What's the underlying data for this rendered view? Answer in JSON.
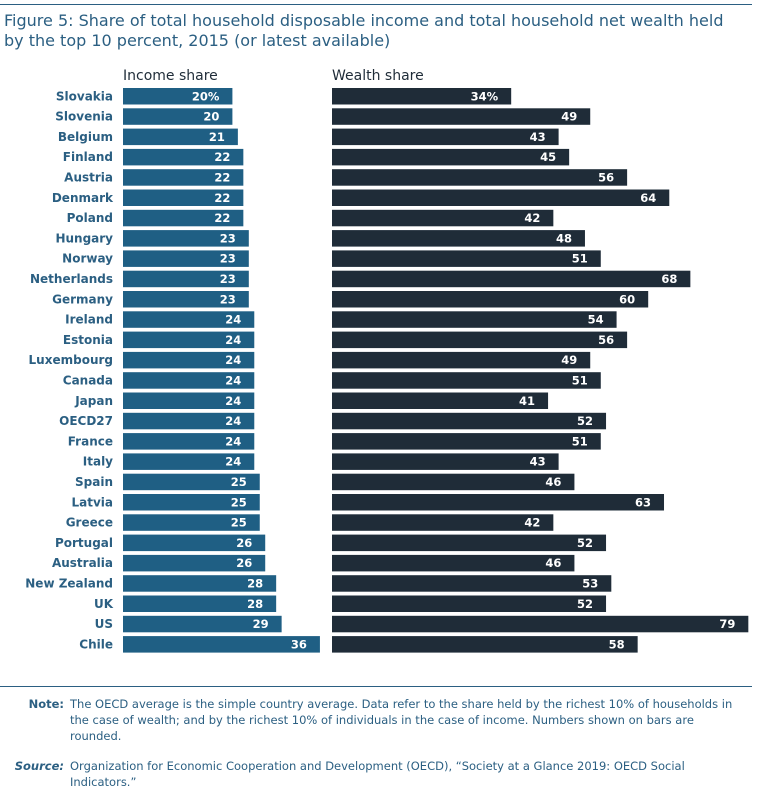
{
  "title": "Figure 5: Share of total household disposable income and total household net wealth held by the top 10 percent, 2015 (or latest available)",
  "chart_data": {
    "type": "bar",
    "orientation": "horizontal",
    "categories": [
      "Slovakia",
      "Slovenia",
      "Belgium",
      "Finland",
      "Austria",
      "Denmark",
      "Poland",
      "Hungary",
      "Norway",
      "Netherlands",
      "Germany",
      "Ireland",
      "Estonia",
      "Luxembourg",
      "Canada",
      "Japan",
      "OECD27",
      "France",
      "Italy",
      "Spain",
      "Latvia",
      "Greece",
      "Portugal",
      "Australia",
      "New Zealand",
      "UK",
      "US",
      "Chile"
    ],
    "series": [
      {
        "name": "Income share",
        "color": "#1f5f84",
        "values": [
          20,
          20,
          21,
          22,
          22,
          22,
          22,
          23,
          23,
          23,
          23,
          24,
          24,
          24,
          24,
          24,
          24,
          24,
          24,
          25,
          25,
          25,
          26,
          26,
          28,
          28,
          29,
          36
        ],
        "labels": [
          "20%",
          "20",
          "21",
          "22",
          "22",
          "22",
          "22",
          "23",
          "23",
          "23",
          "23",
          "24",
          "24",
          "24",
          "24",
          "24",
          "24",
          "24",
          "24",
          "25",
          "25",
          "25",
          "26",
          "26",
          "28",
          "28",
          "29",
          "36"
        ]
      },
      {
        "name": "Wealth share",
        "color": "#1f2c38",
        "values": [
          34,
          49,
          43,
          45,
          56,
          64,
          42,
          48,
          51,
          68,
          60,
          54,
          56,
          49,
          51,
          41,
          52,
          51,
          43,
          46,
          63,
          42,
          52,
          46,
          53,
          52,
          79,
          58
        ],
        "labels": [
          "34%",
          "49",
          "43",
          "45",
          "56",
          "64",
          "42",
          "48",
          "51",
          "68",
          "60",
          "54",
          "56",
          "49",
          "51",
          "41",
          "52",
          "51",
          "43",
          "46",
          "63",
          "42",
          "52",
          "46",
          "53",
          "52",
          "79",
          "58"
        ]
      }
    ],
    "xlim": [
      0,
      80
    ],
    "grid": false,
    "legend": "none"
  },
  "note": {
    "label": "Note:",
    "text": "The OECD average is the simple country average. Data refer to the share held by the richest 10% of households in the case of wealth; and by the richest 10% of individuals in the case of income. Numbers shown on bars are rounded."
  },
  "source": {
    "label": "Source:",
    "text": "Organization for Economic Cooperation and Development (OECD), “Society at a Glance 2019: OECD Social Indicators.”"
  }
}
